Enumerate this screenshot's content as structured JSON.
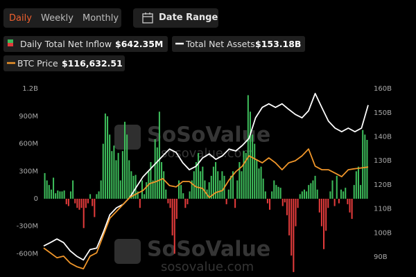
{
  "tabs": [
    "Daily",
    "Weekly",
    "Monthly"
  ],
  "active_tab": 0,
  "date_range_button": "Date Range",
  "watermark": {
    "brand": "SoSoValue",
    "url": "sosovalue.com"
  },
  "chart_data": {
    "type": "bar-line",
    "ylim": [
      -820,
      1280
    ],
    "yticks": [
      {
        "value": 1200,
        "label": "1.2B"
      },
      {
        "value": 900,
        "label": "900M"
      },
      {
        "value": 600,
        "label": "600M"
      },
      {
        "value": 300,
        "label": "300M"
      },
      0,
      {
        "value": -300,
        "label": "-300M"
      },
      {
        "value": -600,
        "label": "-600M"
      }
    ],
    "y2lim": [
      83,
      163
    ],
    "y2ticks": [
      {
        "value": 160,
        "label": "160B"
      },
      {
        "value": 150,
        "label": "150B"
      },
      {
        "value": 140,
        "label": "140B"
      },
      {
        "value": 130,
        "label": "130B"
      },
      {
        "value": 120,
        "label": "120B"
      },
      {
        "value": 110,
        "label": "110B"
      },
      {
        "value": 100,
        "label": "100B"
      },
      {
        "value": 90,
        "label": "90B"
      }
    ],
    "y3lim": [
      75000,
      150000
    ],
    "grid": false,
    "series": [
      {
        "name": "Daily Total Net Inflow",
        "latest_label": "$642.35M",
        "color": "#3dbb5a",
        "negative_color": "#e23b3b",
        "kind": "bar",
        "values": [
          280,
          200,
          150,
          100,
          230,
          60,
          90,
          80,
          80,
          90,
          -60,
          -80,
          80,
          200,
          -50,
          -100,
          -120,
          -100,
          -320,
          -100,
          -50,
          50,
          -80,
          -200,
          50,
          80,
          200,
          600,
          930,
          900,
          700,
          520,
          580,
          420,
          500,
          200,
          520,
          840,
          700,
          420,
          300,
          250,
          260,
          80,
          -100,
          200,
          50,
          180,
          300,
          400,
          200,
          650,
          560,
          950,
          400,
          300,
          100,
          -50,
          -100,
          -400,
          -600,
          -220,
          200,
          150,
          60,
          -100,
          -60,
          80,
          200,
          300,
          400,
          500,
          300,
          350,
          200,
          100,
          180,
          250,
          350,
          400,
          300,
          200,
          300,
          250,
          -60,
          100,
          250,
          300,
          -100,
          200,
          400,
          300,
          520,
          500,
          1130,
          950,
          700,
          600,
          430,
          330,
          350,
          220,
          80,
          -50,
          -120,
          80,
          200,
          150,
          130,
          120,
          -80,
          -40,
          -180,
          -400,
          -620,
          -800,
          -300,
          -100,
          50,
          80,
          100,
          80,
          150,
          170,
          200,
          250,
          100,
          -150,
          -300,
          -550,
          -350,
          -100,
          80,
          200,
          -80,
          250,
          -50,
          100,
          80,
          120,
          -60,
          -150,
          -220,
          150,
          300,
          350,
          150,
          750,
          700,
          642.35
        ]
      },
      {
        "name": "Total Net Assets",
        "latest_label": "$153.18B",
        "color": "#ffffff",
        "kind": "line",
        "axis": "y2",
        "values": [
          94.6,
          96.0,
          97.5,
          96.0,
          92.6,
          90.3,
          88.8,
          93.1,
          93.7,
          100.3,
          107.6,
          110.5,
          111.9,
          114.8,
          119.1,
          123.4,
          126.3,
          129.2,
          132.1,
          134.9,
          133.5,
          129.2,
          126.3,
          127.7,
          131.2,
          132.9,
          130.6,
          132.1,
          134.9,
          134.1,
          136.4,
          139.3,
          147.9,
          152.2,
          153.7,
          152.2,
          153.7,
          151.4,
          149.3,
          147.9,
          150.8,
          158.0,
          152.2,
          146.5,
          143.6,
          142.1,
          143.6,
          142.1,
          143.6,
          153.18
        ]
      },
      {
        "name": "BTC Price",
        "latest_label": "$116,632.51",
        "color": "#f0962a",
        "kind": "line",
        "axis": "y3",
        "values": [
          85100,
          83200,
          81300,
          81900,
          79200,
          77800,
          77000,
          81900,
          83200,
          90000,
          96700,
          99400,
          102100,
          104800,
          106200,
          107500,
          110200,
          111000,
          112100,
          109400,
          108900,
          111000,
          111000,
          108900,
          108300,
          104800,
          106700,
          107500,
          111600,
          114800,
          117000,
          121000,
          119700,
          118300,
          120200,
          118300,
          115600,
          118300,
          119100,
          121000,
          123700,
          117000,
          115600,
          115600,
          114300,
          112900,
          115600,
          116000,
          116300,
          116632.51
        ]
      }
    ]
  }
}
